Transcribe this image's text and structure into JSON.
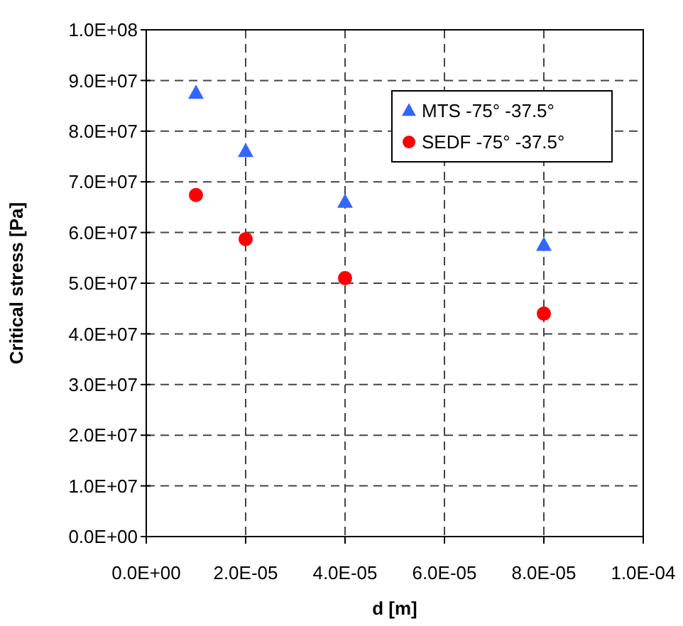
{
  "chart_data": {
    "type": "scatter",
    "xlabel": "d [m]",
    "ylabel": "Critical stress [Pa]",
    "xlim": [
      0,
      0.0001
    ],
    "ylim": [
      0,
      100000000
    ],
    "xticks": [
      {
        "value": 0,
        "label": "0.0E+00"
      },
      {
        "value": 2e-05,
        "label": "2.0E-05"
      },
      {
        "value": 4e-05,
        "label": "4.0E-05"
      },
      {
        "value": 6e-05,
        "label": "6.0E-05"
      },
      {
        "value": 8e-05,
        "label": "8.0E-05"
      },
      {
        "value": 0.0001,
        "label": "1.0E-04"
      }
    ],
    "yticks": [
      {
        "value": 0,
        "label": "0.0E+00"
      },
      {
        "value": 10000000,
        "label": "1.0E+07"
      },
      {
        "value": 20000000,
        "label": "2.0E+07"
      },
      {
        "value": 30000000,
        "label": "3.0E+07"
      },
      {
        "value": 40000000,
        "label": "4.0E+07"
      },
      {
        "value": 50000000,
        "label": "5.0E+07"
      },
      {
        "value": 60000000,
        "label": "6.0E+07"
      },
      {
        "value": 70000000,
        "label": "7.0E+07"
      },
      {
        "value": 80000000,
        "label": "8.0E+07"
      },
      {
        "value": 90000000,
        "label": "9.0E+07"
      },
      {
        "value": 100000000,
        "label": "1.0E+08"
      }
    ],
    "x": [
      1e-05,
      2e-05,
      4e-05,
      8e-05
    ],
    "grid": true,
    "legend": "top right",
    "line_style": "dashed",
    "series": [
      {
        "name": "MTS -75° -37.5°",
        "color": "#3366ff",
        "marker": "triangle",
        "values": [
          87500000,
          76000000,
          66000000,
          57500000
        ]
      },
      {
        "name": "SEDF -75° -37.5°",
        "color": "#ff0000",
        "marker": "circle",
        "values": [
          67400000,
          58700000,
          51000000,
          44000000
        ]
      }
    ]
  }
}
